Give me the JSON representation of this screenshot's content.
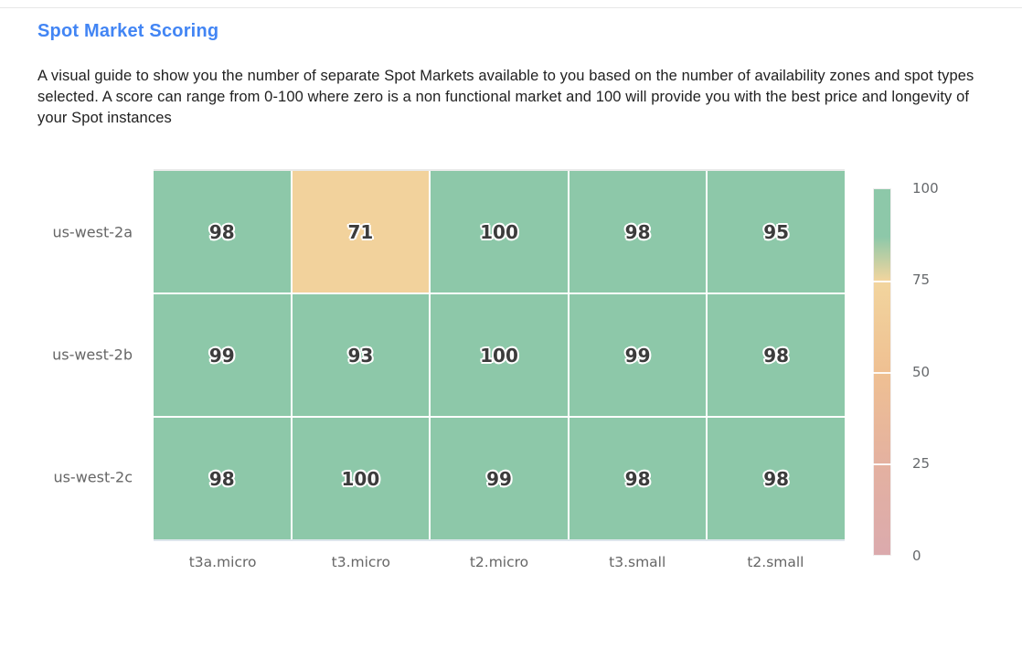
{
  "page": {
    "title": "Spot Market Scoring",
    "title_color": "#4285f4",
    "description": "A visual guide to show you the number of separate Spot Markets available to you based on the number of availability zones and spot types selected. A score can range from 0-100 where zero is a non functional market and 100 will provide you with the best price and longevity of your Spot instances"
  },
  "chart_data": {
    "type": "heatmap",
    "title": "Spot Market Scoring",
    "x_categories": [
      "t3a.micro",
      "t3.micro",
      "t2.micro",
      "t3.small",
      "t2.small"
    ],
    "y_categories": [
      "us-west-2a",
      "us-west-2b",
      "us-west-2c"
    ],
    "rows": [
      [
        98,
        71,
        100,
        98,
        95
      ],
      [
        99,
        93,
        100,
        99,
        98
      ],
      [
        98,
        100,
        99,
        98,
        98
      ]
    ],
    "value_range": [
      0,
      100
    ],
    "grid_line_color": "#ffffff",
    "label_color": "#666666",
    "cell_text_color": "#3c3c3c",
    "legend": {
      "position": "right",
      "tick_labels": [
        "100",
        "75",
        "50",
        "25",
        "0"
      ]
    },
    "color_stops": [
      {
        "pos": 0.0,
        "color": "#dbaaad"
      },
      {
        "pos": 0.25,
        "color": "#e4b1a0"
      },
      {
        "pos": 0.5,
        "color": "#efc092"
      },
      {
        "pos": 0.75,
        "color": "#f2d59e"
      },
      {
        "pos": 0.87,
        "color": "#8dc8a9"
      },
      {
        "pos": 1.0,
        "color": "#8dc8a9"
      }
    ]
  }
}
